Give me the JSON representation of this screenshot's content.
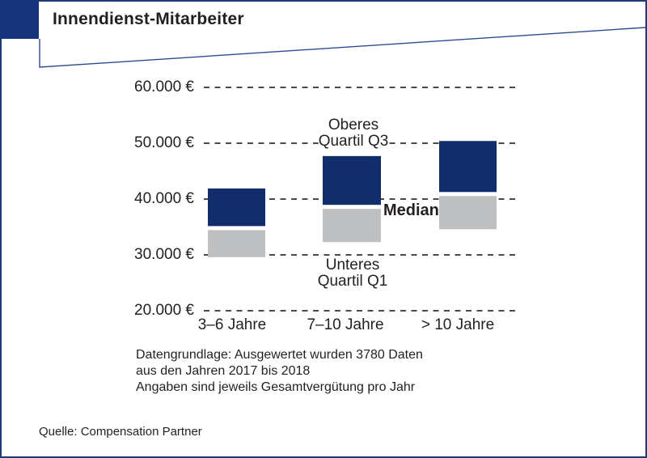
{
  "window": {
    "title": "Innendienst-Mitarbeiter"
  },
  "chart_data": {
    "type": "bar",
    "subtype": "floating-quartile-range-boxes",
    "title": "Innendienst-Mitarbeiter",
    "categories": [
      "3–6 Jahre",
      "7–10 Jahre",
      "> 10 Jahre"
    ],
    "series": [
      {
        "name": "Unteres Quartil Q1",
        "values": [
          29600,
          32300,
          34600
        ]
      },
      {
        "name": "Median",
        "values": [
          34800,
          38600,
          40900
        ]
      },
      {
        "name": "Oberes Quartil Q3",
        "values": [
          41900,
          47700,
          50400
        ]
      }
    ],
    "ylim": [
      20000,
      60000
    ],
    "ytick_values": [
      20000,
      30000,
      40000,
      50000,
      60000
    ],
    "ytick_labels": [
      "20.000 €",
      "30.000 €",
      "40.000 €",
      "50.000 €",
      "60.000 €"
    ],
    "xlabel": "",
    "ylabel": "",
    "grid": "horizontal-dashed",
    "legend": "none",
    "annotations": {
      "upper_quartile": "Oberes\nQuartil Q3",
      "median": "Median",
      "lower_quartile": "Unteres\nQuartil Q1"
    }
  },
  "footnote": {
    "lines": [
      "Datengrundlage: Ausgewertet wurden 3780 Daten",
      "aus den Jahren 2017 bis 2018",
      "Angaben sind jeweils Gesamtvergütung pro Jahr"
    ]
  },
  "source": "Quelle: Compensation Partner",
  "colors": {
    "bar_blue": "#122d6b",
    "bar_gray": "#bdbfc1",
    "corner_square": "#16337d",
    "page_border": "#1d3b7a",
    "banner_line": "#2d4b8e",
    "grid_dash": "#4a4a4a",
    "text": "#231f20"
  }
}
